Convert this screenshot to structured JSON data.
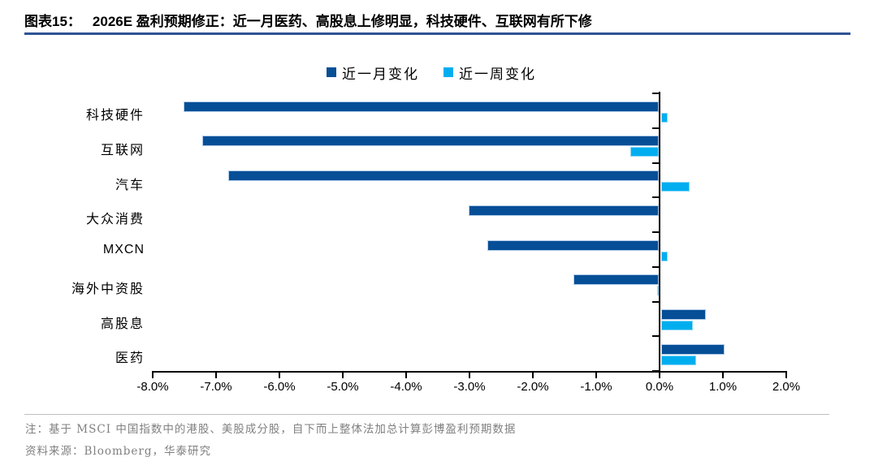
{
  "figure": {
    "title_label": "图表15：",
    "title_text": "2026E 盈利预期修正：近一月医药、高股息上修明显，科技硬件、互联网有所下修"
  },
  "legend": {
    "items": [
      {
        "label": "近一月变化",
        "color": "#064F97"
      },
      {
        "label": "近一周变化",
        "color": "#00AEEF"
      }
    ]
  },
  "chart_data": {
    "type": "bar",
    "orientation": "horizontal",
    "title": "2026E 盈利预期修正",
    "categories": [
      "科技硬件",
      "互联网",
      "汽车",
      "大众消费",
      "MXCN",
      "海外中资股",
      "高股息",
      "医药"
    ],
    "series": [
      {
        "name": "近一月变化",
        "color": "#064F97",
        "values": [
          -7.5,
          -7.2,
          -6.8,
          -3.0,
          -2.7,
          -1.35,
          0.7,
          1.0
        ]
      },
      {
        "name": "近一周变化",
        "color": "#00AEEF",
        "values": [
          0.1,
          -0.45,
          0.45,
          0.0,
          0.1,
          -0.03,
          0.5,
          0.55
        ]
      }
    ],
    "xlim": [
      -8,
      2
    ],
    "xtick_labels": [
      "-8.0%",
      "-7.0%",
      "-6.0%",
      "-5.0%",
      "-4.0%",
      "-3.0%",
      "-2.0%",
      "-1.0%",
      "0.0%",
      "1.0%",
      "2.0%"
    ],
    "unit": "percent",
    "grid": false,
    "legend_position": "top"
  },
  "footer": {
    "note": "注：基于 MSCI 中国指数中的港股、美股成分股，自下而上整体法加总计算彭博盈利预期数据",
    "source": "资料来源：Bloomberg，华泰研究"
  }
}
